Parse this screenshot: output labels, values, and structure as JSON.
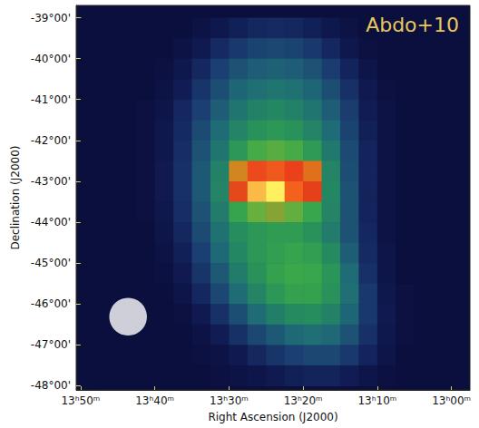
{
  "chart_data": {
    "type": "heatmap",
    "annotation": "Abdo+10",
    "x_label": "Right Ascension (J2000)",
    "y_label": "Declination (J2000)",
    "xlim": [
      830.6,
      777.5
    ],
    "xticks": [
      {
        "value": 830,
        "label": "13ʰ50ᵐ"
      },
      {
        "value": 820,
        "label": "13ʰ40ᵐ"
      },
      {
        "value": 810,
        "label": "13ʰ30ᵐ"
      },
      {
        "value": 800,
        "label": "13ʰ20ᵐ"
      },
      {
        "value": 790,
        "label": "13ʰ10ᵐ"
      },
      {
        "value": 780,
        "label": "13ʰ00ᵐ"
      }
    ],
    "ylim": [
      -48.1,
      -38.7
    ],
    "yticks": [
      {
        "value": -39,
        "label": "-39°00'"
      },
      {
        "value": -40,
        "label": "-40°00'"
      },
      {
        "value": -41,
        "label": "-41°00'"
      },
      {
        "value": -42,
        "label": "-42°00'"
      },
      {
        "value": -43,
        "label": "-43°00'"
      },
      {
        "value": -44,
        "label": "-44°00'"
      },
      {
        "value": -45,
        "label": "-45°00'"
      },
      {
        "value": -46,
        "label": "-46°00'"
      },
      {
        "value": -47,
        "label": "-47°00'"
      },
      {
        "value": -48,
        "label": "-48°00'"
      }
    ],
    "grid": false,
    "beam": {
      "ra": 823.6,
      "dec": -46.31,
      "radius": 0.46
    },
    "cells": {
      "color_range": [
        0,
        10
      ],
      "x": [
        828.75,
        826.25,
        823.75,
        821.25,
        818.75,
        816.25,
        813.75,
        811.25,
        808.75,
        806.25,
        803.75,
        801.25,
        798.75,
        796.25,
        793.75,
        791.25,
        788.75,
        786.25,
        783.75,
        781.25
      ],
      "y": [
        -39.25,
        -39.75,
        -40.25,
        -40.75,
        -41.25,
        -41.75,
        -42.25,
        -42.75,
        -43.25,
        -43.75,
        -44.25,
        -44.75,
        -45.25,
        -45.75,
        -46.25,
        -46.75,
        -47.25,
        -47.75
      ],
      "values": [
        [
          0,
          0,
          0,
          0,
          0,
          0,
          0.2,
          0.4,
          0.7,
          0.9,
          1,
          0.9,
          0.7,
          0.4,
          0.2,
          0,
          0,
          0,
          0,
          0
        ],
        [
          0,
          0,
          0,
          0,
          0,
          0.2,
          0.5,
          1,
          1.4,
          1.7,
          1.8,
          1.7,
          1.4,
          0.9,
          0.4,
          0.1,
          0,
          0,
          0,
          0
        ],
        [
          0,
          0,
          0,
          0,
          0.1,
          0.4,
          0.9,
          1.6,
          2.1,
          2.4,
          2.5,
          2.4,
          2.1,
          1.5,
          0.8,
          0.3,
          0,
          0,
          0,
          0
        ],
        [
          0,
          0,
          0,
          0,
          0.2,
          0.6,
          1.3,
          2,
          2.6,
          2.9,
          3.1,
          3,
          2.6,
          2,
          1.2,
          0.5,
          0.1,
          0,
          0,
          0
        ],
        [
          0,
          0,
          0,
          0.1,
          0.3,
          0.9,
          1.6,
          2.4,
          3.1,
          3.5,
          3.7,
          3.5,
          3.1,
          2.4,
          1.5,
          0.6,
          0.2,
          0,
          0,
          0
        ],
        [
          0,
          0,
          0,
          0.1,
          0.4,
          1,
          1.9,
          2.8,
          3.6,
          4.1,
          4.3,
          4.1,
          3.6,
          2.8,
          1.7,
          0.7,
          0.2,
          0,
          0,
          0
        ],
        [
          0,
          0,
          0,
          0.1,
          0.4,
          1.1,
          2.1,
          3.1,
          4.3,
          5.2,
          5.5,
          5.2,
          4.4,
          3.2,
          1.9,
          0.8,
          0.2,
          0,
          0,
          0
        ],
        [
          0,
          0,
          0,
          0.1,
          0.5,
          1.2,
          2.3,
          3.5,
          6.5,
          8.2,
          8.6,
          8,
          6.8,
          3.6,
          2,
          0.8,
          0.2,
          0,
          0,
          0
        ],
        [
          0,
          0,
          0,
          0.1,
          0.5,
          1.2,
          2.3,
          3.6,
          7.3,
          9.6,
          10,
          8.8,
          7.4,
          3.7,
          2.1,
          0.8,
          0.2,
          0,
          0,
          0
        ],
        [
          0,
          0,
          0,
          0.1,
          0.4,
          1.1,
          2.1,
          3.3,
          4.8,
          5.8,
          6,
          5.7,
          4.9,
          3.6,
          2.1,
          0.8,
          0.2,
          0,
          0,
          0
        ],
        [
          0,
          0,
          0,
          0,
          0.3,
          0.9,
          1.9,
          3,
          3.9,
          4.3,
          4.5,
          4.5,
          4.1,
          3.3,
          2.1,
          0.9,
          0.2,
          0,
          0,
          0
        ],
        [
          0,
          0,
          0,
          0,
          0.2,
          0.7,
          1.6,
          2.7,
          3.7,
          4.3,
          4.6,
          4.8,
          4.6,
          3.8,
          2.4,
          1,
          0.3,
          0,
          0,
          0
        ],
        [
          0,
          0,
          0,
          0,
          0.1,
          0.5,
          1.3,
          2.3,
          3.3,
          4.1,
          4.7,
          5,
          4.9,
          4.2,
          2.8,
          1.2,
          0.3,
          0,
          0,
          0
        ],
        [
          0,
          0,
          0,
          0,
          0,
          0.3,
          0.9,
          1.8,
          2.8,
          3.6,
          4.3,
          4.7,
          4.7,
          4.1,
          2.9,
          1.4,
          0.4,
          0.1,
          0,
          0
        ],
        [
          0,
          0,
          0,
          0,
          0,
          0.1,
          0.5,
          1.2,
          2,
          2.8,
          3.4,
          3.8,
          3.9,
          3.5,
          2.6,
          1.4,
          0.5,
          0.1,
          0,
          0
        ],
        [
          0,
          0,
          0,
          0,
          0,
          0,
          0.2,
          0.6,
          1.2,
          1.8,
          2.3,
          2.7,
          2.9,
          2.7,
          2.1,
          1.2,
          0.4,
          0.1,
          0,
          0
        ],
        [
          0,
          0,
          0,
          0,
          0,
          0,
          0.1,
          0.2,
          0.5,
          0.9,
          1.3,
          1.6,
          1.8,
          1.8,
          1.4,
          0.8,
          0.3,
          0,
          0,
          0
        ],
        [
          0,
          0,
          0,
          0,
          0,
          0,
          0,
          0.1,
          0.2,
          0.3,
          0.5,
          0.7,
          0.8,
          0.8,
          0.6,
          0.3,
          0.1,
          0,
          0,
          0
        ]
      ]
    }
  }
}
